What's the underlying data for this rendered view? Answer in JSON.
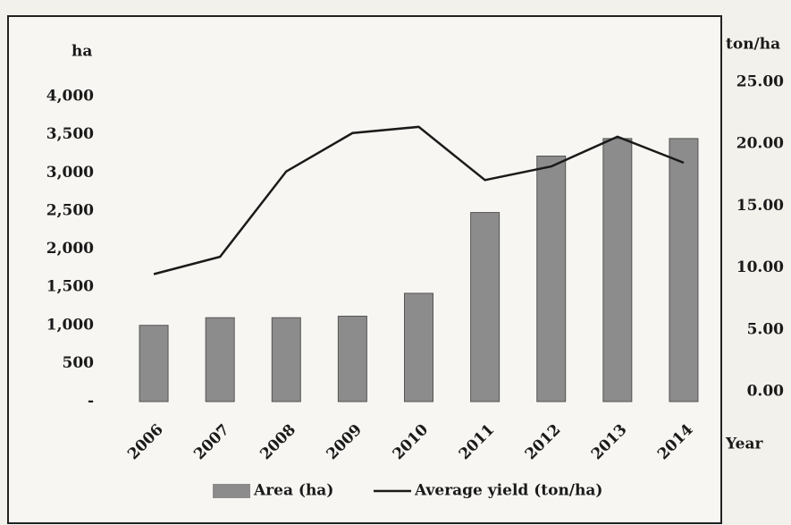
{
  "chart_data": {
    "type": "bar-line",
    "y_label": "ha",
    "y2_label": "ton/ha",
    "x_label": "Year",
    "categories": [
      "2006",
      "2007",
      "2008",
      "2009",
      "2010",
      "2011",
      "2012",
      "2013",
      "2014"
    ],
    "series": [
      {
        "name": "Area (ha)",
        "type": "bar",
        "color": "#8c8c8c",
        "values": [
          1000,
          1100,
          1100,
          1120,
          1420,
          2480,
          3220,
          3450,
          3450
        ]
      },
      {
        "name": "Average yield (ton/ha)",
        "type": "line",
        "axis": "y2",
        "color": "#1a1a1a",
        "values": [
          9.5,
          10.9,
          17.8,
          20.9,
          21.4,
          17.1,
          18.2,
          20.6,
          18.5
        ]
      }
    ],
    "ylim": [
      0,
      4000
    ],
    "yticks": [
      {
        "value": 0,
        "label": "-"
      },
      500,
      {
        "value": 1000,
        "label": "1,000"
      },
      {
        "value": 1500,
        "label": "1,500"
      },
      {
        "value": 2000,
        "label": "2,000"
      },
      {
        "value": 2500,
        "label": "2,500"
      },
      {
        "value": 3000,
        "label": "3,000"
      },
      {
        "value": 3500,
        "label": "3,500"
      },
      {
        "value": 4000,
        "label": "4,000"
      }
    ],
    "y2lim": [
      0,
      25
    ],
    "y2ticks": [
      {
        "value": 0,
        "label": "0.00"
      },
      {
        "value": 5,
        "label": "5.00"
      },
      {
        "value": 10,
        "label": "10.00"
      },
      {
        "value": 15,
        "label": "15.00"
      },
      {
        "value": 20,
        "label": "20.00"
      },
      {
        "value": 25,
        "label": "25.00"
      }
    ],
    "legend": "bottom"
  }
}
